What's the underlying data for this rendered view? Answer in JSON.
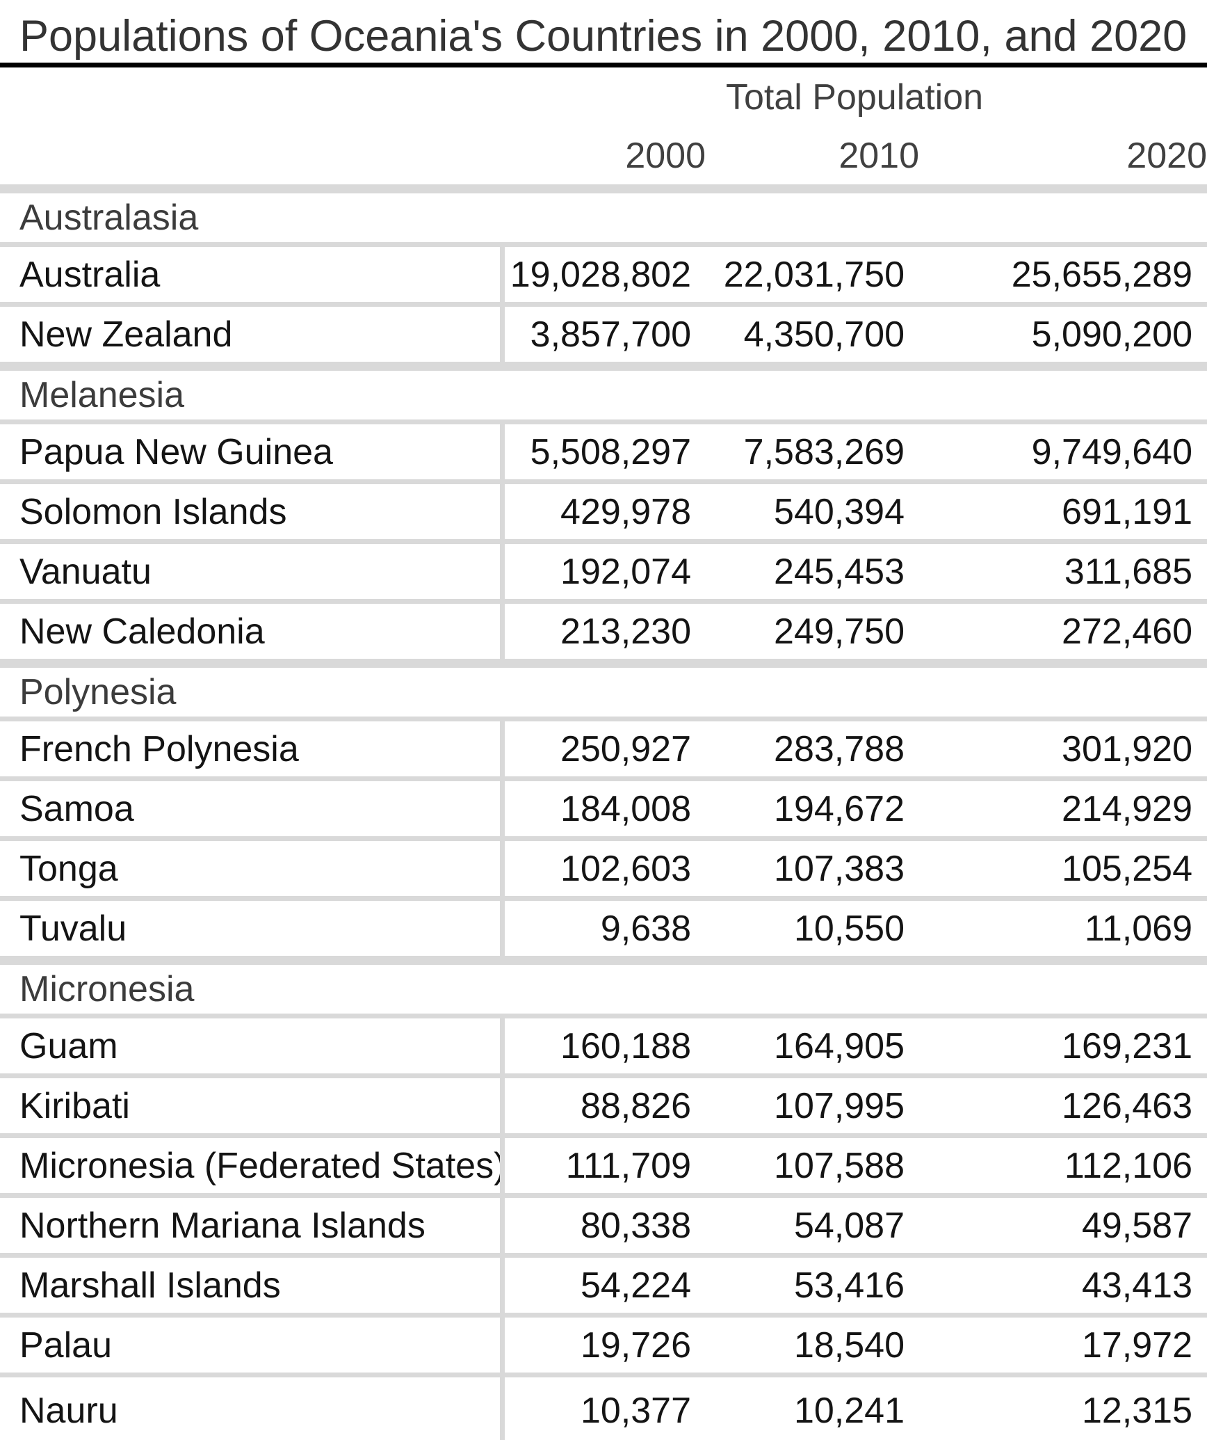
{
  "title": "Populations of Oceania's Countries in 2000, 2010, and 2020",
  "colors": {
    "background": "#ffffff",
    "title_text": "#333333",
    "title_rule": "#000000",
    "header_text": "#404040",
    "group_text": "#3c3c3c",
    "body_text": "#141414",
    "grid_line": "#d9d9d9"
  },
  "chart_data": {
    "type": "table",
    "title": "Populations of Oceania's Countries in 2000, 2010, and 2020",
    "column_spanner": "Total Population",
    "columns": [
      "2000",
      "2010",
      "2020"
    ],
    "groups": [
      {
        "group": "Australasia",
        "rows": [
          {
            "country": "Australia",
            "values": [
              19028802,
              22031750,
              25655289
            ]
          },
          {
            "country": "New Zealand",
            "values": [
              3857700,
              4350700,
              5090200
            ]
          }
        ]
      },
      {
        "group": "Melanesia",
        "rows": [
          {
            "country": "Papua New Guinea",
            "values": [
              5508297,
              7583269,
              9749640
            ]
          },
          {
            "country": "Solomon Islands",
            "values": [
              429978,
              540394,
              691191
            ]
          },
          {
            "country": "Vanuatu",
            "values": [
              192074,
              245453,
              311685
            ]
          },
          {
            "country": "New Caledonia",
            "values": [
              213230,
              249750,
              272460
            ]
          }
        ]
      },
      {
        "group": "Polynesia",
        "rows": [
          {
            "country": "French Polynesia",
            "values": [
              250927,
              283788,
              301920
            ]
          },
          {
            "country": "Samoa",
            "values": [
              184008,
              194672,
              214929
            ]
          },
          {
            "country": "Tonga",
            "values": [
              102603,
              107383,
              105254
            ]
          },
          {
            "country": "Tuvalu",
            "values": [
              9638,
              10550,
              11069
            ]
          }
        ]
      },
      {
        "group": "Micronesia",
        "rows": [
          {
            "country": "Guam",
            "values": [
              160188,
              164905,
              169231
            ]
          },
          {
            "country": "Kiribati",
            "values": [
              88826,
              107995,
              126463
            ]
          },
          {
            "country": "Micronesia (Federated States)",
            "values": [
              111709,
              107588,
              112106
            ]
          },
          {
            "country": "Northern Mariana Islands",
            "values": [
              80338,
              54087,
              49587
            ]
          },
          {
            "country": "Marshall Islands",
            "values": [
              54224,
              53416,
              43413
            ]
          },
          {
            "country": "Palau",
            "values": [
              19726,
              18540,
              17972
            ]
          },
          {
            "country": "Nauru",
            "values": [
              10377,
              10241,
              12315
            ]
          }
        ]
      }
    ]
  }
}
